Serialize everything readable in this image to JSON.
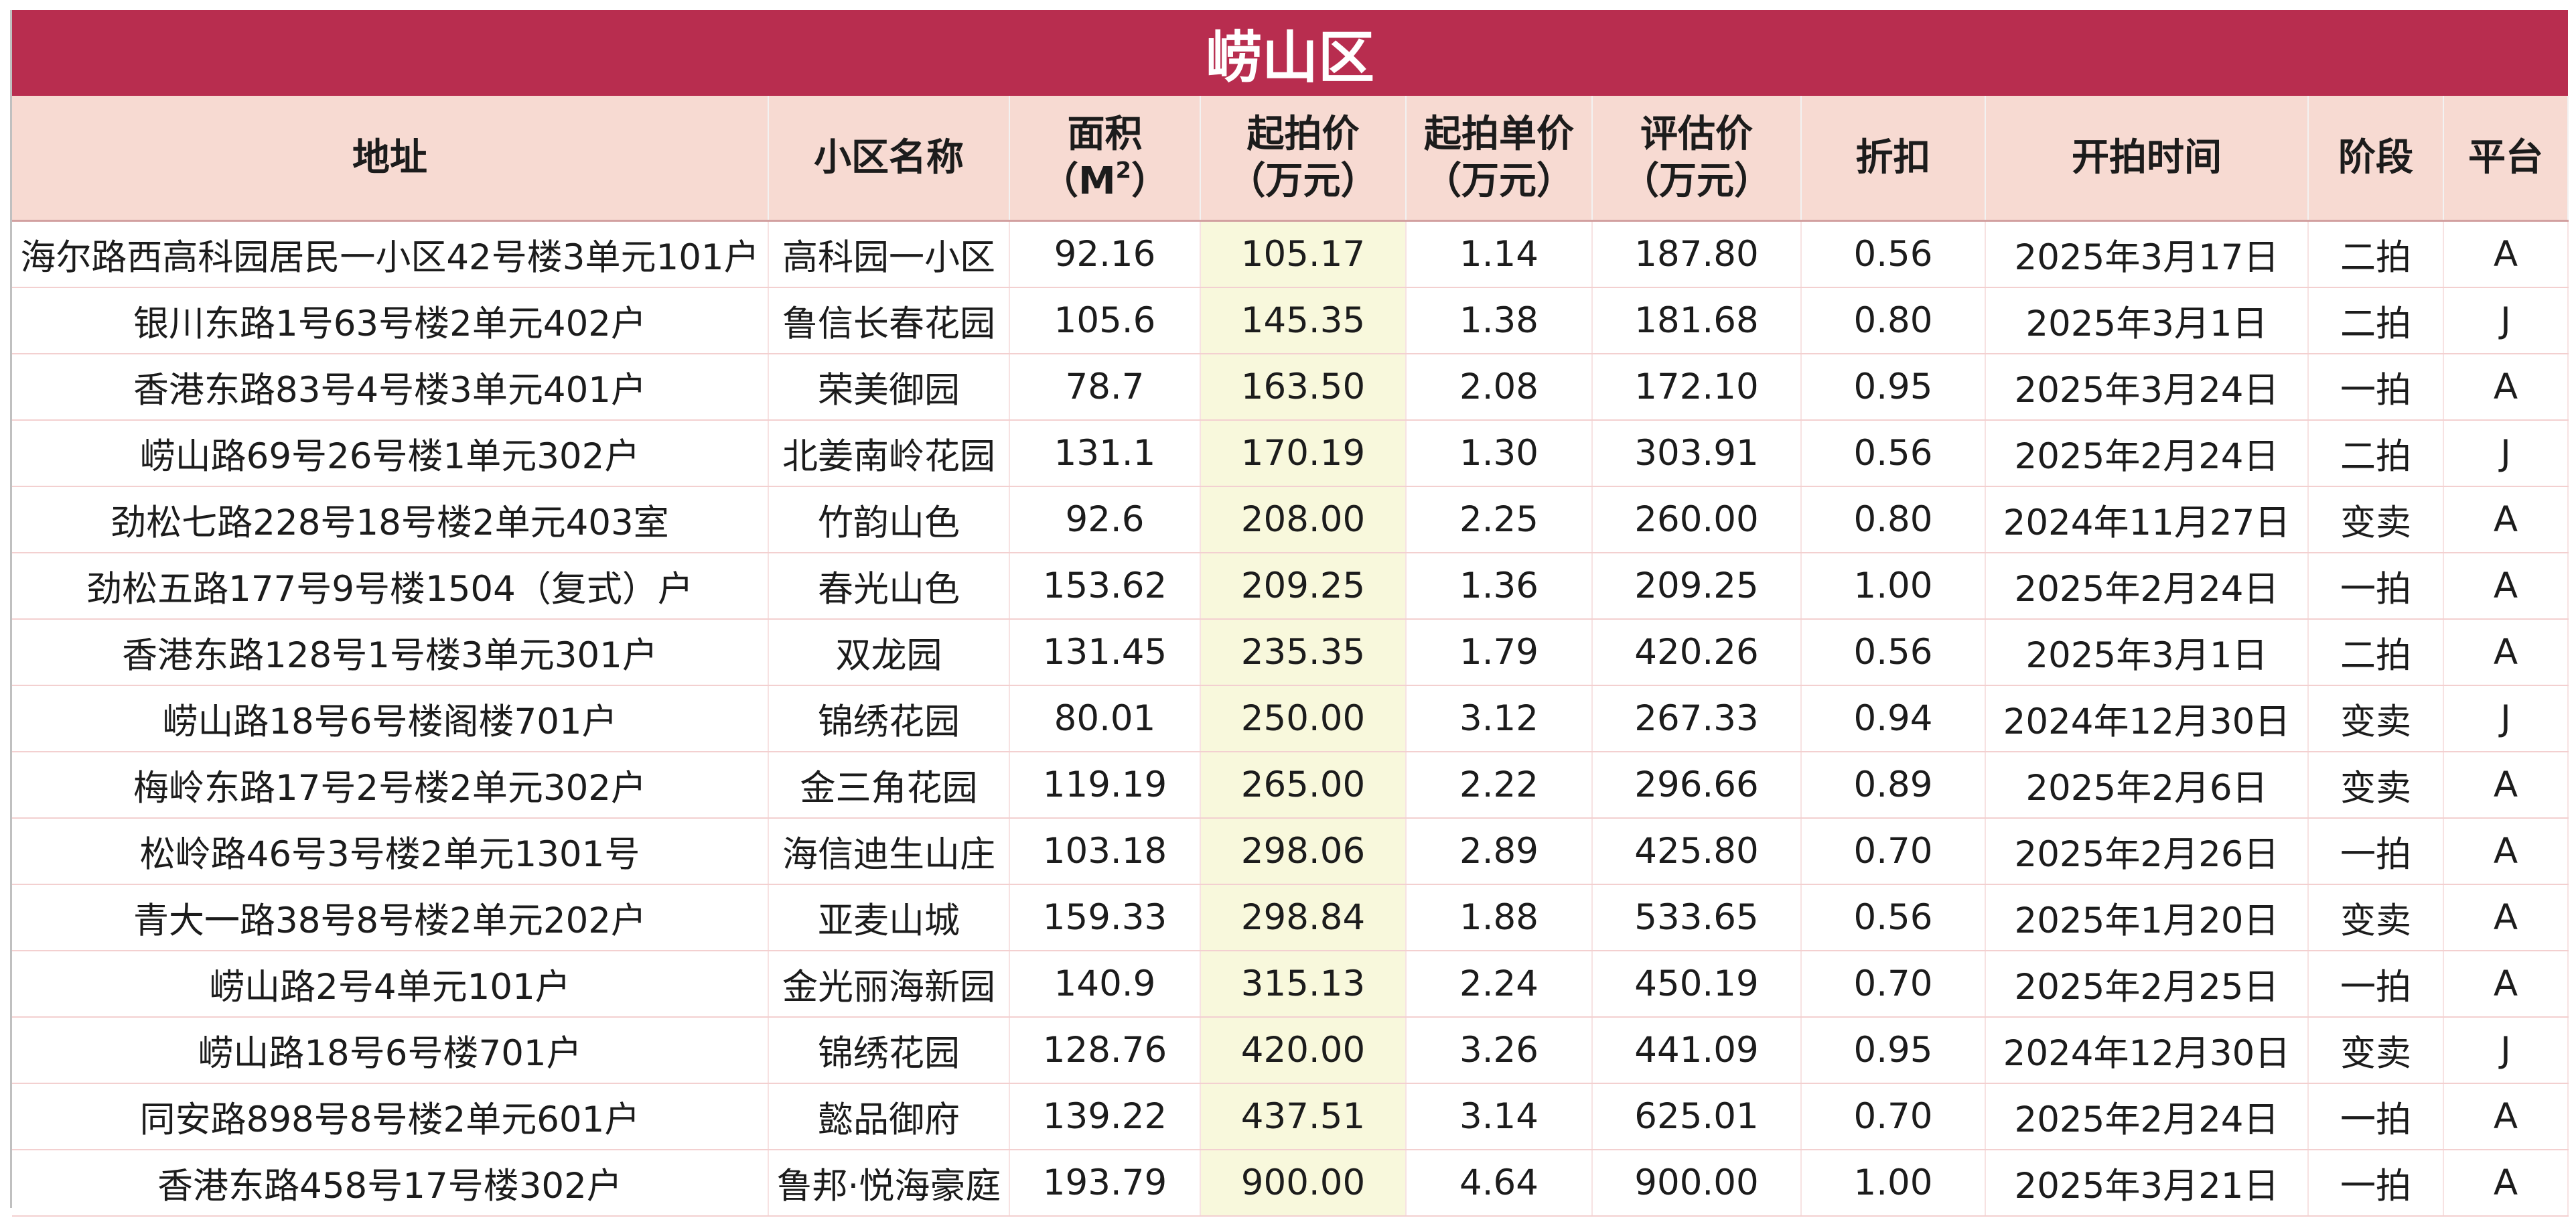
{
  "title": "崂山区",
  "headers": {
    "address": "地址",
    "community": "小区名称",
    "area_line1": "面积",
    "area_line2_pre": "（M",
    "area_sup": "2",
    "area_line2_post": "）",
    "start_price_line1": "起拍价",
    "start_price_line2": "（万元）",
    "unit_price_line1": "起拍单价",
    "unit_price_line2": "（万元）",
    "appraisal_line1": "评估价",
    "appraisal_line2": "（万元）",
    "discount": "折扣",
    "auction_time": "开拍时间",
    "stage": "阶段",
    "platform": "平台"
  },
  "highlight_color": "#f8f8dc",
  "rows": [
    {
      "address": "海尔路西高科园居民一小区42号楼3单元101户",
      "community": "高科园一小区",
      "area": "92.16",
      "start_price": "105.17",
      "unit_price": "1.14",
      "appraisal": "187.80",
      "discount": "0.56",
      "date": "2025年3月17日",
      "stage": "二拍",
      "platform": "A"
    },
    {
      "address": "银川东路1号63号楼2单元402户",
      "community": "鲁信长春花园",
      "area": "105.6",
      "start_price": "145.35",
      "unit_price": "1.38",
      "appraisal": "181.68",
      "discount": "0.80",
      "date": "2025年3月1日",
      "stage": "二拍",
      "platform": "J"
    },
    {
      "address": "香港东路83号4号楼3单元401户",
      "community": "荣美御园",
      "area": "78.7",
      "start_price": "163.50",
      "unit_price": "2.08",
      "appraisal": "172.10",
      "discount": "0.95",
      "date": "2025年3月24日",
      "stage": "一拍",
      "platform": "A"
    },
    {
      "address": "崂山路69号26号楼1单元302户",
      "community": "北姜南岭花园",
      "area": "131.1",
      "start_price": "170.19",
      "unit_price": "1.30",
      "appraisal": "303.91",
      "discount": "0.56",
      "date": "2025年2月24日",
      "stage": "二拍",
      "platform": "J"
    },
    {
      "address": "劲松七路228号18号楼2单元403室",
      "community": "竹韵山色",
      "area": "92.6",
      "start_price": "208.00",
      "unit_price": "2.25",
      "appraisal": "260.00",
      "discount": "0.80",
      "date": "2024年11月27日",
      "stage": "变卖",
      "platform": "A"
    },
    {
      "address": "劲松五路177号9号楼1504（复式）户",
      "community": "春光山色",
      "area": "153.62",
      "start_price": "209.25",
      "unit_price": "1.36",
      "appraisal": "209.25",
      "discount": "1.00",
      "date": "2025年2月24日",
      "stage": "一拍",
      "platform": "A"
    },
    {
      "address": "香港东路128号1号楼3单元301户",
      "community": "双龙园",
      "area": "131.45",
      "start_price": "235.35",
      "unit_price": "1.79",
      "appraisal": "420.26",
      "discount": "0.56",
      "date": "2025年3月1日",
      "stage": "二拍",
      "platform": "A"
    },
    {
      "address": "崂山路18号6号楼阁楼701户",
      "community": "锦绣花园",
      "area": "80.01",
      "start_price": "250.00",
      "unit_price": "3.12",
      "appraisal": "267.33",
      "discount": "0.94",
      "date": "2024年12月30日",
      "stage": "变卖",
      "platform": "J"
    },
    {
      "address": "梅岭东路17号2号楼2单元302户",
      "community": "金三角花园",
      "area": "119.19",
      "start_price": "265.00",
      "unit_price": "2.22",
      "appraisal": "296.66",
      "discount": "0.89",
      "date": "2025年2月6日",
      "stage": "变卖",
      "platform": "A"
    },
    {
      "address": "松岭路46号3号楼2单元1301号",
      "community": "海信迪生山庄",
      "area": "103.18",
      "start_price": "298.06",
      "unit_price": "2.89",
      "appraisal": "425.80",
      "discount": "0.70",
      "date": "2025年2月26日",
      "stage": "一拍",
      "platform": "A"
    },
    {
      "address": "青大一路38号8号楼2单元202户",
      "community": "亚麦山城",
      "area": "159.33",
      "start_price": "298.84",
      "unit_price": "1.88",
      "appraisal": "533.65",
      "discount": "0.56",
      "date": "2025年1月20日",
      "stage": "变卖",
      "platform": "A"
    },
    {
      "address": "崂山路2号4单元101户",
      "community": "金光丽海新园",
      "area": "140.9",
      "start_price": "315.13",
      "unit_price": "2.24",
      "appraisal": "450.19",
      "discount": "0.70",
      "date": "2025年2月25日",
      "stage": "一拍",
      "platform": "A"
    },
    {
      "address": "崂山路18号6号楼701户",
      "community": "锦绣花园",
      "area": "128.76",
      "start_price": "420.00",
      "unit_price": "3.26",
      "appraisal": "441.09",
      "discount": "0.95",
      "date": "2024年12月30日",
      "stage": "变卖",
      "platform": "J"
    },
    {
      "address": "同安路898号8号楼2单元601户",
      "community": "懿品御府",
      "area": "139.22",
      "start_price": "437.51",
      "unit_price": "3.14",
      "appraisal": "625.01",
      "discount": "0.70",
      "date": "2025年2月24日",
      "stage": "一拍",
      "platform": "A"
    },
    {
      "address": "香港东路458号17号楼302户",
      "community": "鲁邦·悦海豪庭",
      "area": "193.79",
      "start_price": "900.00",
      "unit_price": "4.64",
      "appraisal": "900.00",
      "discount": "1.00",
      "date": "2025年3月21日",
      "stage": "一拍",
      "platform": "A"
    }
  ]
}
